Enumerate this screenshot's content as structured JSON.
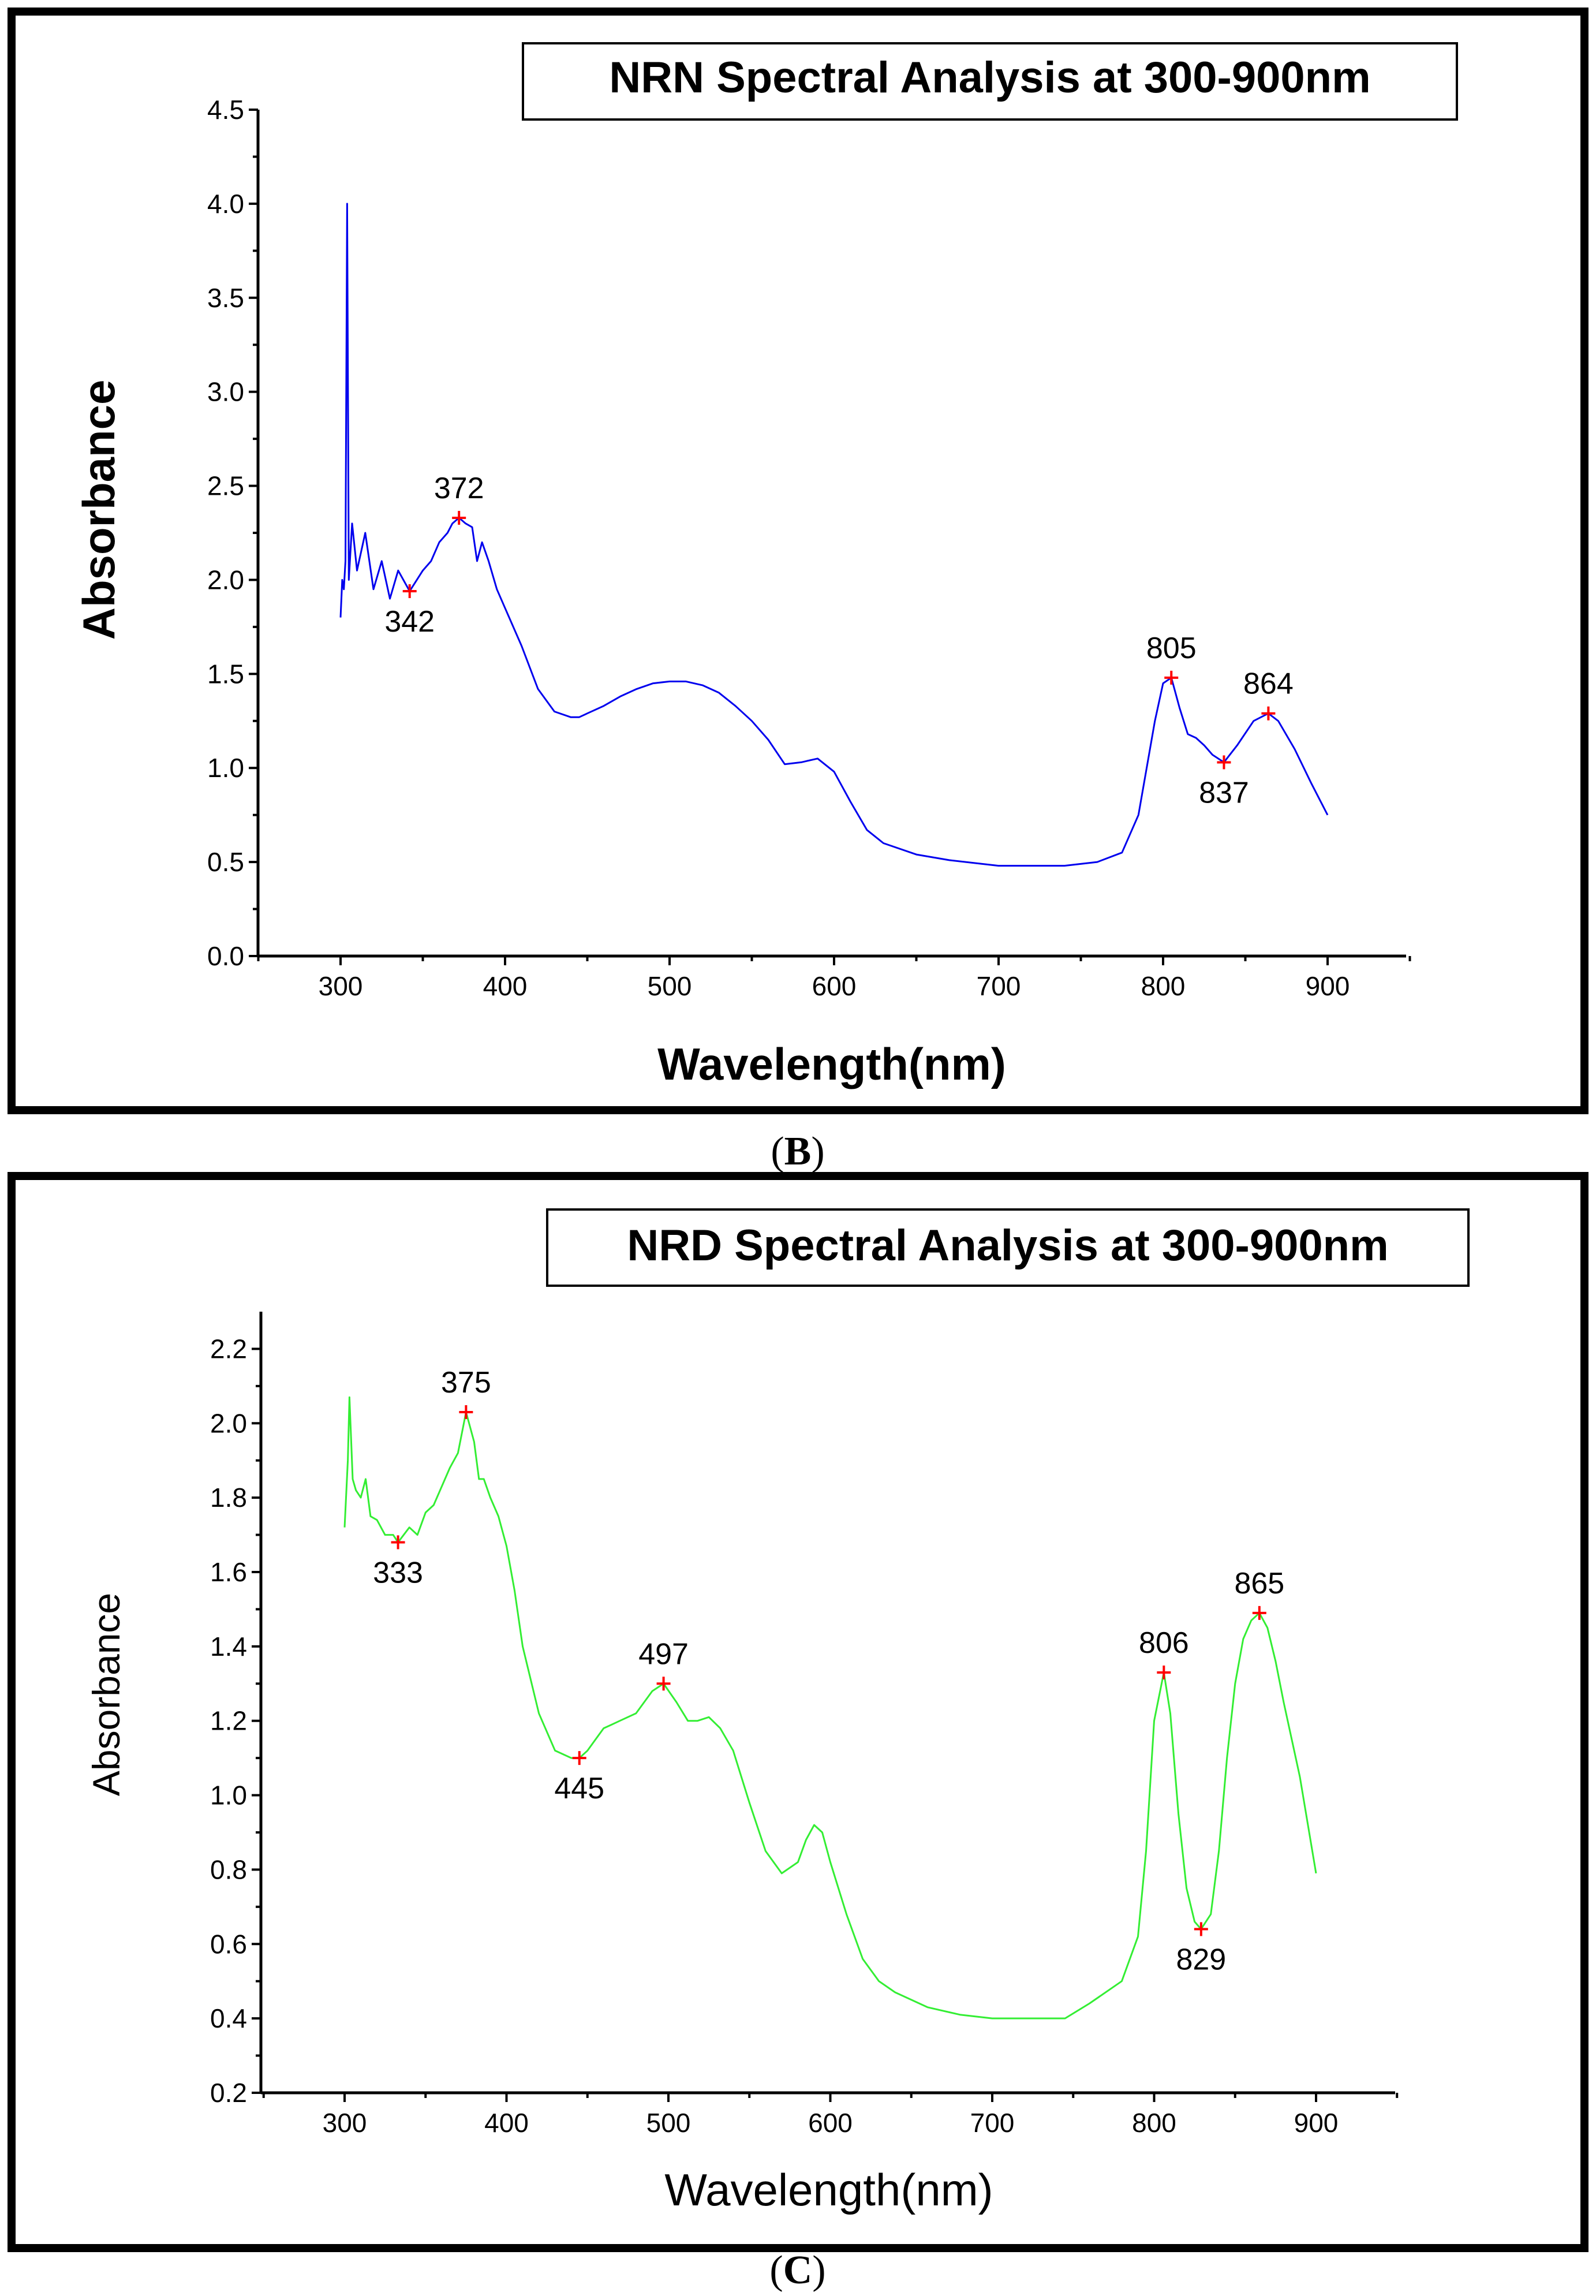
{
  "panel_captions": {
    "b": {
      "open": "(",
      "letter": "B",
      "close": ")"
    },
    "c": {
      "open": "(",
      "letter": "C",
      "close": ")"
    }
  },
  "chart_data": [
    {
      "id": "nrn",
      "type": "line",
      "title": "NRN Spectral Analysis at 300-900nm",
      "xlabel": "Wavelength(nm)",
      "ylabel": "Absorbance",
      "xlim": [
        250,
        950
      ],
      "ylim": [
        0,
        4.5
      ],
      "xticks": [
        300,
        400,
        500,
        600,
        700,
        800,
        900
      ],
      "yticks": [
        0.0,
        0.5,
        1.0,
        1.5,
        2.0,
        2.5,
        3.0,
        3.5,
        4.0,
        4.5
      ],
      "ytick_labels": [
        "0.0",
        "0.5",
        "1.0",
        "1.5",
        "2.0",
        "2.5",
        "3.0",
        "3.5",
        "4.0",
        "4.5"
      ],
      "line_color": "#0000ee",
      "marker_color": "#ff0000",
      "series": [
        {
          "name": "NRN",
          "x": [
            300,
            301,
            302,
            303,
            304,
            305,
            307,
            310,
            315,
            320,
            325,
            330,
            335,
            342,
            350,
            355,
            360,
            365,
            368,
            372,
            376,
            380,
            383,
            386,
            390,
            395,
            400,
            410,
            420,
            430,
            440,
            445,
            450,
            460,
            470,
            480,
            490,
            500,
            510,
            520,
            530,
            540,
            550,
            560,
            570,
            580,
            590,
            600,
            610,
            620,
            630,
            650,
            670,
            700,
            720,
            740,
            760,
            775,
            785,
            795,
            800,
            805,
            810,
            815,
            820,
            825,
            830,
            837,
            845,
            855,
            864,
            870,
            880,
            890,
            900
          ],
          "y": [
            1.8,
            2.0,
            1.95,
            2.1,
            4.0,
            2.0,
            2.3,
            2.05,
            2.25,
            1.95,
            2.1,
            1.9,
            2.05,
            1.94,
            2.05,
            2.1,
            2.2,
            2.25,
            2.3,
            2.33,
            2.3,
            2.28,
            2.1,
            2.2,
            2.1,
            1.95,
            1.85,
            1.65,
            1.42,
            1.3,
            1.27,
            1.27,
            1.29,
            1.33,
            1.38,
            1.42,
            1.45,
            1.46,
            1.46,
            1.44,
            1.4,
            1.33,
            1.25,
            1.15,
            1.02,
            1.03,
            1.05,
            0.98,
            0.82,
            0.67,
            0.6,
            0.54,
            0.51,
            0.48,
            0.48,
            0.48,
            0.5,
            0.55,
            0.75,
            1.25,
            1.45,
            1.48,
            1.32,
            1.18,
            1.16,
            1.12,
            1.07,
            1.03,
            1.12,
            1.25,
            1.29,
            1.25,
            1.1,
            0.92,
            0.75
          ]
        }
      ],
      "peaks": [
        {
          "label": "342",
          "x": 342,
          "y": 1.94,
          "label_pos": "below"
        },
        {
          "label": "372",
          "x": 372,
          "y": 2.33,
          "label_pos": "above"
        },
        {
          "label": "805",
          "x": 805,
          "y": 1.48,
          "label_pos": "above"
        },
        {
          "label": "837",
          "x": 837,
          "y": 1.03,
          "label_pos": "below"
        },
        {
          "label": "864",
          "x": 864,
          "y": 1.29,
          "label_pos": "above"
        }
      ]
    },
    {
      "id": "nrd",
      "type": "line",
      "title": "NRD Spectral Analysis at 300-900nm",
      "xlabel": "Wavelength(nm)",
      "ylabel": "Absorbance",
      "xlim": [
        250,
        950
      ],
      "ylim": [
        0.2,
        2.3
      ],
      "xticks": [
        300,
        400,
        500,
        600,
        700,
        800,
        900
      ],
      "yticks": [
        0.2,
        0.4,
        0.6,
        0.8,
        1.0,
        1.2,
        1.4,
        1.6,
        1.8,
        2.0,
        2.2
      ],
      "ytick_labels": [
        "0.2",
        "0.4",
        "0.6",
        "0.8",
        "1.0",
        "1.2",
        "1.4",
        "1.6",
        "1.8",
        "2.0",
        "2.2"
      ],
      "line_color": "#33ee33",
      "marker_color": "#ff0000",
      "series": [
        {
          "name": "NRD",
          "x": [
            300,
            302,
            303,
            305,
            307,
            310,
            313,
            316,
            320,
            325,
            330,
            333,
            340,
            345,
            350,
            355,
            360,
            365,
            370,
            375,
            380,
            383,
            386,
            390,
            395,
            400,
            405,
            410,
            420,
            430,
            440,
            445,
            450,
            455,
            460,
            465,
            470,
            480,
            490,
            497,
            505,
            512,
            518,
            525,
            532,
            540,
            550,
            560,
            570,
            580,
            585,
            590,
            595,
            600,
            610,
            620,
            630,
            640,
            660,
            680,
            700,
            720,
            745,
            760,
            780,
            790,
            795,
            800,
            806,
            810,
            815,
            820,
            825,
            829,
            835,
            840,
            845,
            850,
            855,
            860,
            865,
            870,
            875,
            880,
            890,
            900
          ],
          "y": [
            1.72,
            1.9,
            2.07,
            1.85,
            1.82,
            1.8,
            1.85,
            1.75,
            1.74,
            1.7,
            1.7,
            1.68,
            1.72,
            1.7,
            1.76,
            1.78,
            1.83,
            1.88,
            1.92,
            2.03,
            1.95,
            1.85,
            1.85,
            1.8,
            1.75,
            1.67,
            1.55,
            1.4,
            1.22,
            1.12,
            1.1,
            1.1,
            1.12,
            1.15,
            1.18,
            1.19,
            1.2,
            1.22,
            1.28,
            1.3,
            1.25,
            1.2,
            1.2,
            1.21,
            1.18,
            1.12,
            0.98,
            0.85,
            0.79,
            0.82,
            0.88,
            0.92,
            0.9,
            0.82,
            0.68,
            0.56,
            0.5,
            0.47,
            0.43,
            0.41,
            0.4,
            0.4,
            0.4,
            0.44,
            0.5,
            0.62,
            0.85,
            1.2,
            1.33,
            1.22,
            0.95,
            0.75,
            0.66,
            0.64,
            0.68,
            0.85,
            1.1,
            1.3,
            1.42,
            1.47,
            1.49,
            1.45,
            1.36,
            1.25,
            1.05,
            0.79
          ]
        }
      ],
      "peaks": [
        {
          "label": "333",
          "x": 333,
          "y": 1.68,
          "label_pos": "below"
        },
        {
          "label": "375",
          "x": 375,
          "y": 2.03,
          "label_pos": "above"
        },
        {
          "label": "445",
          "x": 445,
          "y": 1.1,
          "label_pos": "below"
        },
        {
          "label": "497",
          "x": 497,
          "y": 1.3,
          "label_pos": "above"
        },
        {
          "label": "806",
          "x": 806,
          "y": 1.33,
          "label_pos": "above"
        },
        {
          "label": "829",
          "x": 829,
          "y": 0.64,
          "label_pos": "below"
        },
        {
          "label": "865",
          "x": 865,
          "y": 1.49,
          "label_pos": "above"
        }
      ]
    }
  ]
}
